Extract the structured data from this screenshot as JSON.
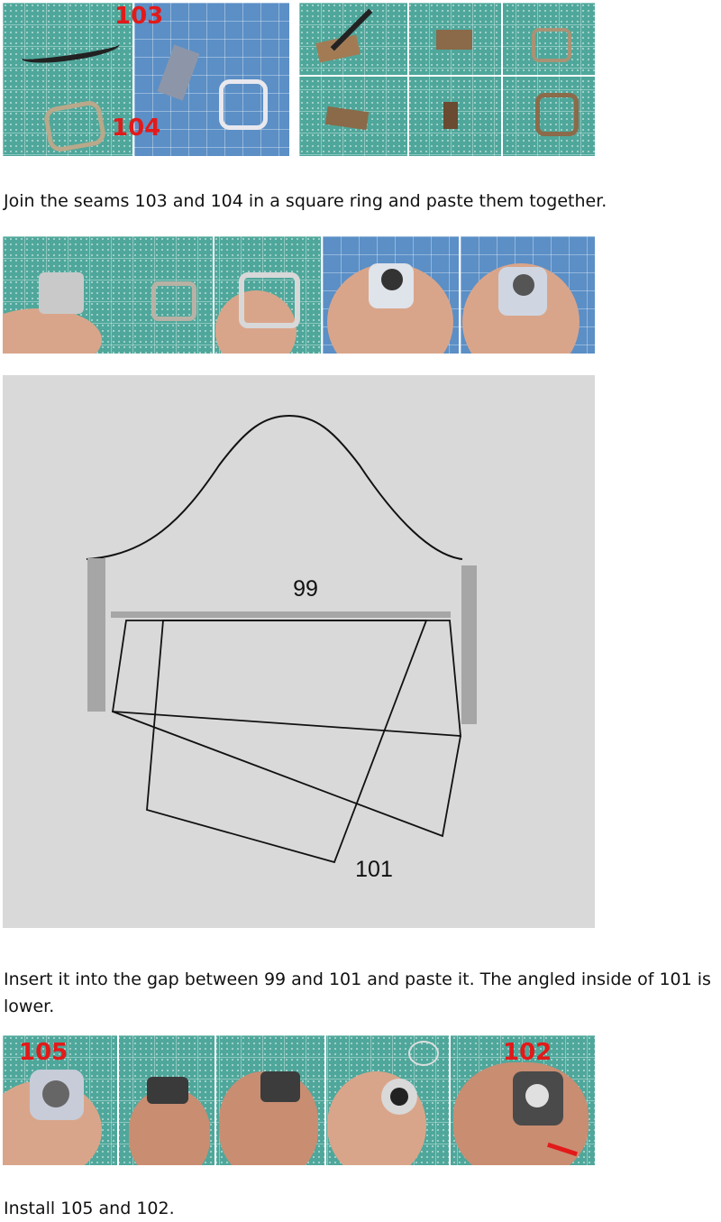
{
  "section1": {
    "labels": [
      "103",
      "104"
    ],
    "caption": "Join the seams 103 and 104 in a square ring and paste them together."
  },
  "section2": {
    "diagram": {
      "label_top": "99",
      "label_bottom": "101"
    },
    "caption": "Insert it into the gap between 99 and 101 and paste it. The angled inside of 101 is lower."
  },
  "section3": {
    "labels": [
      "105",
      "102"
    ],
    "caption": "Install 105 and 102."
  },
  "colors": {
    "mat": "#4fa79b",
    "label_red": "#e21a1a",
    "diagram_bg": "#d9d9d9"
  }
}
